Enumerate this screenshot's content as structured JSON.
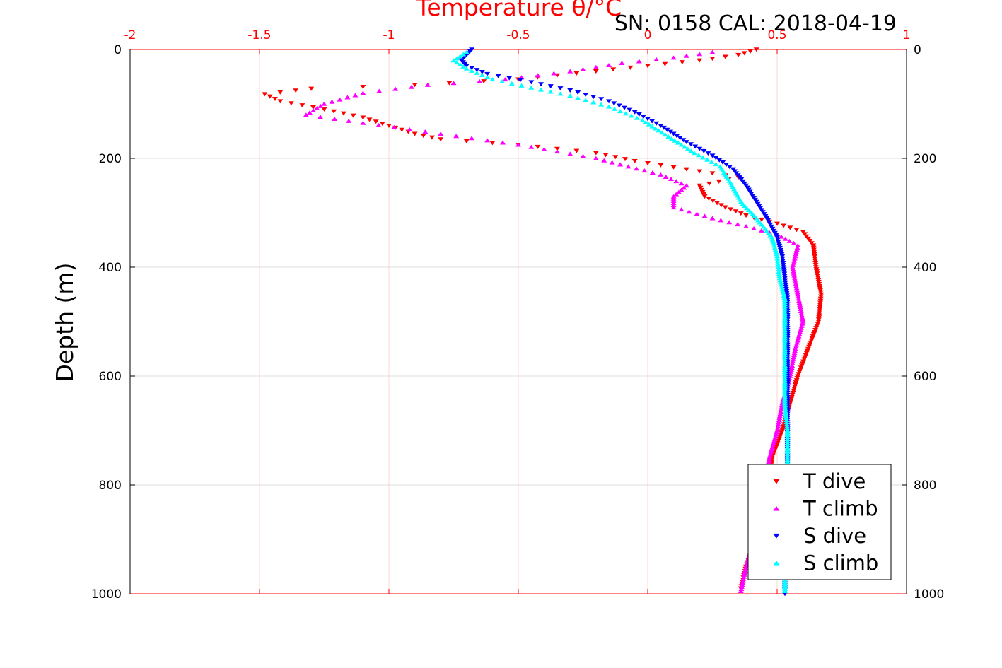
{
  "title": "SN: 0158  CAL: 2018-04-19",
  "chart_data": {
    "type": "scatter",
    "title": "SN: 0158  CAL: 2018-04-19",
    "xlabel": "Temperature θ/°C",
    "ylabel": "Depth (m)",
    "xlim": [
      -2,
      1
    ],
    "ylim": [
      0,
      1000
    ],
    "y_reversed": true,
    "x_ticks": [
      "-2",
      "-1.5",
      "-1",
      "-0.5",
      "0",
      "0.5",
      "1"
    ],
    "y_ticks": [
      "0",
      "200",
      "400",
      "600",
      "800",
      "1000"
    ],
    "x_tick_color": "#ff0000",
    "grid": true,
    "legend_position": "bottom-right",
    "series": [
      {
        "name": "T dive",
        "marker": "triangle-down",
        "color": "#ff0000",
        "points": [
          [
            0.42,
            0
          ],
          [
            0.35,
            10
          ],
          [
            0.2,
            20
          ],
          [
            0.0,
            30
          ],
          [
            -0.2,
            40
          ],
          [
            -0.5,
            55
          ],
          [
            -0.9,
            65
          ],
          [
            -1.3,
            72
          ],
          [
            -1.48,
            82
          ],
          [
            -1.42,
            95
          ],
          [
            -1.25,
            110
          ],
          [
            -1.1,
            125
          ],
          [
            -1.0,
            140
          ],
          [
            -0.9,
            155
          ],
          [
            -0.8,
            165
          ],
          [
            -0.5,
            175
          ],
          [
            -0.2,
            190
          ],
          [
            -0.05,
            205
          ],
          [
            0.15,
            220
          ],
          [
            0.35,
            235
          ],
          [
            0.2,
            250
          ],
          [
            0.22,
            270
          ],
          [
            0.3,
            290
          ],
          [
            0.38,
            305
          ],
          [
            0.5,
            320
          ],
          [
            0.6,
            335
          ],
          [
            0.64,
            360
          ],
          [
            0.65,
            400
          ],
          [
            0.67,
            450
          ],
          [
            0.66,
            500
          ],
          [
            0.62,
            550
          ],
          [
            0.58,
            600
          ],
          [
            0.55,
            650
          ],
          [
            0.52,
            700
          ],
          [
            0.48,
            750
          ],
          [
            0.47,
            800
          ],
          [
            0.45,
            850
          ],
          [
            0.42,
            900
          ],
          [
            0.38,
            950
          ],
          [
            0.36,
            990
          ]
        ]
      },
      {
        "name": "T climb",
        "marker": "triangle-up",
        "color": "#ff00ff",
        "points": [
          [
            0.25,
            5
          ],
          [
            0.1,
            15
          ],
          [
            -0.1,
            25
          ],
          [
            -0.3,
            40
          ],
          [
            -0.55,
            55
          ],
          [
            -0.85,
            65
          ],
          [
            -1.1,
            80
          ],
          [
            -1.25,
            100
          ],
          [
            -1.32,
            120
          ],
          [
            -1.1,
            135
          ],
          [
            -0.8,
            155
          ],
          [
            -0.5,
            175
          ],
          [
            -0.2,
            200
          ],
          [
            0.05,
            230
          ],
          [
            0.15,
            250
          ],
          [
            0.1,
            270
          ],
          [
            0.1,
            290
          ],
          [
            0.25,
            310
          ],
          [
            0.38,
            325
          ],
          [
            0.5,
            340
          ],
          [
            0.58,
            360
          ],
          [
            0.56,
            400
          ],
          [
            0.58,
            450
          ],
          [
            0.6,
            500
          ],
          [
            0.57,
            550
          ],
          [
            0.55,
            600
          ],
          [
            0.52,
            650
          ],
          [
            0.5,
            700
          ],
          [
            0.47,
            750
          ],
          [
            0.45,
            800
          ],
          [
            0.43,
            850
          ],
          [
            0.41,
            900
          ],
          [
            0.38,
            950
          ],
          [
            0.36,
            995
          ]
        ]
      },
      {
        "name": "S dive",
        "marker": "triangle-down",
        "color": "#0000ff",
        "points": [
          [
            -0.68,
            0
          ],
          [
            -0.7,
            10
          ],
          [
            -0.72,
            20
          ],
          [
            -0.7,
            30
          ],
          [
            -0.62,
            45
          ],
          [
            -0.45,
            60
          ],
          [
            -0.3,
            75
          ],
          [
            -0.15,
            95
          ],
          [
            -0.05,
            115
          ],
          [
            0.05,
            140
          ],
          [
            0.15,
            170
          ],
          [
            0.25,
            195
          ],
          [
            0.33,
            220
          ],
          [
            0.38,
            250
          ],
          [
            0.42,
            280
          ],
          [
            0.46,
            310
          ],
          [
            0.5,
            345
          ],
          [
            0.52,
            380
          ],
          [
            0.53,
            420
          ],
          [
            0.54,
            460
          ],
          [
            0.54,
            500
          ],
          [
            0.54,
            550
          ],
          [
            0.54,
            600
          ],
          [
            0.54,
            650
          ],
          [
            0.54,
            700
          ],
          [
            0.54,
            750
          ],
          [
            0.54,
            800
          ],
          [
            0.54,
            850
          ],
          [
            0.53,
            900
          ],
          [
            0.53,
            950
          ],
          [
            0.53,
            1000
          ]
        ]
      },
      {
        "name": "S climb",
        "marker": "triangle-up",
        "color": "#00ffff",
        "points": [
          [
            -0.7,
            5
          ],
          [
            -0.75,
            20
          ],
          [
            -0.7,
            35
          ],
          [
            -0.6,
            55
          ],
          [
            -0.45,
            70
          ],
          [
            -0.3,
            85
          ],
          [
            -0.15,
            105
          ],
          [
            -0.02,
            130
          ],
          [
            0.08,
            160
          ],
          [
            0.18,
            190
          ],
          [
            0.28,
            215
          ],
          [
            0.32,
            245
          ],
          [
            0.36,
            280
          ],
          [
            0.42,
            310
          ],
          [
            0.48,
            345
          ],
          [
            0.5,
            380
          ],
          [
            0.51,
            420
          ],
          [
            0.53,
            460
          ],
          [
            0.53,
            500
          ],
          [
            0.53,
            550
          ],
          [
            0.53,
            600
          ],
          [
            0.53,
            650
          ],
          [
            0.54,
            700
          ],
          [
            0.54,
            750
          ],
          [
            0.54,
            800
          ],
          [
            0.54,
            850
          ],
          [
            0.53,
            900
          ],
          [
            0.53,
            950
          ],
          [
            0.53,
            995
          ]
        ]
      }
    ]
  }
}
